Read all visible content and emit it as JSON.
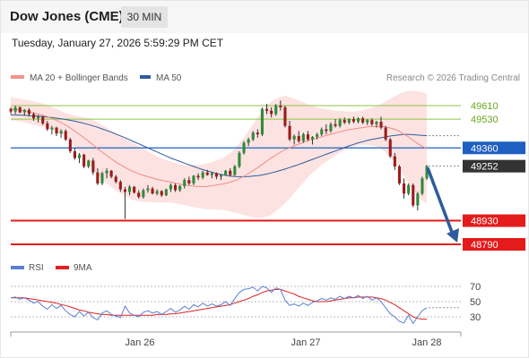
{
  "header": {
    "title": "Dow Jones (CME)",
    "timeframe": "30 MIN"
  },
  "timestamp": "Tuesday, January 27, 2026 5:59:29 PM CET",
  "legend": {
    "items": [
      {
        "label": "MA 20 + Bollinger Bands",
        "color": "#f4928c"
      },
      {
        "label": "MA 50",
        "color": "#2e5b9c"
      }
    ],
    "credit": "Research © 2026 Trading Central"
  },
  "rsi_legend": {
    "items": [
      {
        "label": "RSI",
        "color": "#5b7fd4"
      },
      {
        "label": "9MA",
        "color": "#e22020"
      }
    ]
  },
  "chart_data": [
    {
      "type": "candlestick",
      "title": "Dow Jones (CME)",
      "timeframe": "30 MIN",
      "x_tick_labels": [
        "Jan 26",
        "Jan 27",
        "Jan 28"
      ],
      "price_levels": [
        {
          "value": 49610,
          "label": "49610",
          "kind": "resistance",
          "color": "#8dc63f"
        },
        {
          "value": 49530,
          "label": "49530",
          "kind": "resistance",
          "color": "#8dc63f"
        },
        {
          "value": 49360,
          "label": "49360",
          "kind": "pivot",
          "color": "#1e5fc2"
        },
        {
          "value": 49252,
          "label": "49252",
          "kind": "last_price",
          "color": "#333333"
        },
        {
          "value": 48930,
          "label": "48930",
          "kind": "support",
          "color": "#e41b1b"
        },
        {
          "value": 48790,
          "label": "48790",
          "kind": "support",
          "color": "#e41b1b"
        }
      ],
      "arrow": {
        "from": 49252,
        "to": 48790,
        "direction": "down",
        "color": "#2e5b9c"
      },
      "ohlc": [
        [
          49590,
          49600,
          49560,
          49575
        ],
        [
          49575,
          49610,
          49560,
          49600
        ],
        [
          49600,
          49605,
          49565,
          49570
        ],
        [
          49570,
          49590,
          49550,
          49585
        ],
        [
          49585,
          49595,
          49545,
          49560
        ],
        [
          49560,
          49570,
          49520,
          49535
        ],
        [
          49535,
          49555,
          49510,
          49545
        ],
        [
          49545,
          49550,
          49495,
          49505
        ],
        [
          49505,
          49520,
          49460,
          49470
        ],
        [
          49470,
          49490,
          49440,
          49480
        ],
        [
          49480,
          49485,
          49430,
          49445
        ],
        [
          49445,
          49470,
          49420,
          49460
        ],
        [
          49460,
          49470,
          49400,
          49410
        ],
        [
          49410,
          49420,
          49330,
          49340
        ],
        [
          49340,
          49360,
          49290,
          49300
        ],
        [
          49300,
          49330,
          49270,
          49320
        ],
        [
          49320,
          49325,
          49240,
          49250
        ],
        [
          49250,
          49290,
          49240,
          49285
        ],
        [
          49285,
          49300,
          49200,
          49215
        ],
        [
          49215,
          49240,
          49140,
          49150
        ],
        [
          49150,
          49220,
          49140,
          49210
        ],
        [
          49210,
          49240,
          49180,
          49225
        ],
        [
          49225,
          49230,
          49180,
          49190
        ],
        [
          49190,
          49200,
          49150,
          49160
        ],
        [
          49160,
          49170,
          49100,
          49115
        ],
        [
          49115,
          49130,
          48940,
          49100
        ],
        [
          49100,
          49140,
          49080,
          49130
        ],
        [
          49130,
          49135,
          49090,
          49095
        ],
        [
          49095,
          49110,
          49060,
          49070
        ],
        [
          49070,
          49120,
          49060,
          49110
        ],
        [
          49110,
          49140,
          49095,
          49120
        ],
        [
          49120,
          49130,
          49085,
          49090
        ],
        [
          49090,
          49115,
          49080,
          49105
        ],
        [
          49105,
          49110,
          49070,
          49080
        ],
        [
          49080,
          49120,
          49075,
          49115
        ],
        [
          49115,
          49150,
          49100,
          49140
        ],
        [
          49140,
          49150,
          49100,
          49110
        ],
        [
          49110,
          49140,
          49100,
          49135
        ],
        [
          49135,
          49180,
          49120,
          49170
        ],
        [
          49170,
          49190,
          49140,
          49150
        ],
        [
          49150,
          49200,
          49140,
          49195
        ],
        [
          49195,
          49210,
          49170,
          49185
        ],
        [
          49185,
          49225,
          49175,
          49215
        ],
        [
          49215,
          49230,
          49195,
          49200
        ],
        [
          49200,
          49220,
          49180,
          49210
        ],
        [
          49210,
          49215,
          49175,
          49190
        ],
        [
          49190,
          49205,
          49170,
          49200
        ],
        [
          49200,
          49230,
          49195,
          49225
        ],
        [
          49225,
          49240,
          49190,
          49200
        ],
        [
          49200,
          49260,
          49195,
          49250
        ],
        [
          49250,
          49340,
          49240,
          49330
        ],
        [
          49330,
          49400,
          49320,
          49390
        ],
        [
          49390,
          49420,
          49370,
          49410
        ],
        [
          49410,
          49460,
          49400,
          49450
        ],
        [
          49450,
          49470,
          49420,
          49440
        ],
        [
          49440,
          49600,
          49430,
          49590
        ],
        [
          49590,
          49620,
          49560,
          49580
        ],
        [
          49580,
          49600,
          49540,
          49560
        ],
        [
          49560,
          49620,
          49550,
          49610
        ],
        [
          49610,
          49640,
          49580,
          49600
        ],
        [
          49600,
          49610,
          49480,
          49490
        ],
        [
          49490,
          49520,
          49400,
          49410
        ],
        [
          49410,
          49440,
          49380,
          49430
        ],
        [
          49430,
          49460,
          49390,
          49400
        ],
        [
          49400,
          49450,
          49390,
          49440
        ],
        [
          49440,
          49460,
          49400,
          49410
        ],
        [
          49410,
          49430,
          49380,
          49425
        ],
        [
          49425,
          49450,
          49410,
          49440
        ],
        [
          49440,
          49480,
          49430,
          49470
        ],
        [
          49470,
          49500,
          49440,
          49460
        ],
        [
          49460,
          49510,
          49450,
          49500
        ],
        [
          49500,
          49530,
          49480,
          49490
        ],
        [
          49490,
          49535,
          49480,
          49525
        ],
        [
          49525,
          49540,
          49500,
          49510
        ],
        [
          49510,
          49535,
          49500,
          49530
        ],
        [
          49530,
          49545,
          49505,
          49515
        ],
        [
          49515,
          49540,
          49505,
          49535
        ],
        [
          49535,
          49545,
          49500,
          49510
        ],
        [
          49510,
          49530,
          49495,
          49525
        ],
        [
          49525,
          49535,
          49490,
          49500
        ],
        [
          49500,
          49520,
          49480,
          49515
        ],
        [
          49515,
          49545,
          49470,
          49480
        ],
        [
          49480,
          49490,
          49400,
          49410
        ],
        [
          49410,
          49420,
          49300,
          49310
        ],
        [
          49310,
          49330,
          49230,
          49250
        ],
        [
          49250,
          49260,
          49140,
          49150
        ],
        [
          49150,
          49180,
          49060,
          49090
        ],
        [
          49090,
          49150,
          49080,
          49140
        ],
        [
          49140,
          49150,
          49010,
          49020
        ],
        [
          49020,
          49100,
          48990,
          49090
        ],
        [
          49090,
          49190,
          49080,
          49180
        ],
        [
          49180,
          49260,
          49170,
          49252
        ]
      ],
      "ma20": [
        49590,
        49588,
        49583,
        49578,
        49572,
        49566,
        49560,
        49553,
        49545,
        49535,
        49522,
        49510,
        49495,
        49478,
        49460,
        49440,
        49420,
        49400,
        49378,
        49355,
        49335,
        49315,
        49295,
        49277,
        49260,
        49245,
        49230,
        49218,
        49207,
        49198,
        49190,
        49182,
        49174,
        49168,
        49163,
        49158,
        49152,
        49146,
        49141,
        49137,
        49134,
        49132,
        49131,
        49133,
        49136,
        49140,
        49145,
        49150,
        49158,
        49166,
        49178,
        49192,
        49208,
        49225,
        49243,
        49262,
        49282,
        49300,
        49318,
        49335,
        49350,
        49360,
        49372,
        49382,
        49392,
        49402,
        49410,
        49418,
        49426,
        49434,
        49440,
        49448,
        49455,
        49462,
        49468,
        49472,
        49476,
        49480,
        49484,
        49486,
        49488,
        49487,
        49484,
        49478,
        49470,
        49458,
        49442,
        49425,
        49405,
        49386,
        49370,
        49355
      ],
      "bb_upper": [
        49660,
        49655,
        49650,
        49646,
        49642,
        49636,
        49630,
        49622,
        49613,
        49602,
        49590,
        49578,
        49567,
        49558,
        49550,
        49545,
        49540,
        49535,
        49525,
        49510,
        49495,
        49480,
        49462,
        49445,
        49430,
        49415,
        49400,
        49385,
        49370,
        49355,
        49340,
        49325,
        49310,
        49298,
        49288,
        49280,
        49272,
        49265,
        49260,
        49258,
        49258,
        49260,
        49262,
        49268,
        49275,
        49285,
        49296,
        49310,
        49330,
        49355,
        49385,
        49420,
        49460,
        49500,
        49540,
        49575,
        49610,
        49635,
        49650,
        49662,
        49668,
        49660,
        49650,
        49640,
        49630,
        49618,
        49608,
        49600,
        49594,
        49590,
        49585,
        49580,
        49578,
        49576,
        49575,
        49575,
        49578,
        49582,
        49590,
        49598,
        49608,
        49620,
        49635,
        49650,
        49665,
        49680,
        49690,
        49696,
        49698,
        49695,
        49690,
        49680
      ],
      "bb_lower": [
        49520,
        49522,
        49516,
        49510,
        49502,
        49496,
        49490,
        49484,
        49477,
        49468,
        49454,
        49442,
        49423,
        49398,
        49370,
        49335,
        49300,
        49265,
        49231,
        49200,
        49175,
        49150,
        49128,
        49109,
        49090,
        49075,
        49060,
        49051,
        49044,
        49041,
        49040,
        49039,
        49038,
        49038,
        49038,
        49036,
        49032,
        49027,
        49022,
        49016,
        49010,
        49004,
        49000,
        48998,
        48997,
        48995,
        48994,
        48990,
        48986,
        48977,
        48971,
        48964,
        48956,
        48950,
        48946,
        48949,
        48954,
        48965,
        48986,
        49008,
        49032,
        49060,
        49094,
        49124,
        49154,
        49186,
        49212,
        49236,
        49258,
        49278,
        49295,
        49316,
        49332,
        49348,
        49361,
        49369,
        49374,
        49378,
        49378,
        49374,
        49368,
        49354,
        49333,
        49306,
        49275,
        49236,
        49194,
        49154,
        49112,
        49077,
        49050,
        49030
      ],
      "ma50": [
        49555,
        49555,
        49554,
        49553,
        49551,
        49549,
        49547,
        49545,
        49542,
        49539,
        49536,
        49532,
        49528,
        49523,
        49518,
        49512,
        49505,
        49498,
        49490,
        49482,
        49472,
        49463,
        49453,
        49442,
        49431,
        49420,
        49408,
        49396,
        49384,
        49372,
        49360,
        49348,
        49336,
        49324,
        49312,
        49300,
        49290,
        49280,
        49270,
        49260,
        49250,
        49241,
        49232,
        49224,
        49216,
        49209,
        49203,
        49198,
        49194,
        49191,
        49190,
        49190,
        49191,
        49193,
        49196,
        49200,
        49206,
        49212,
        49219,
        49227,
        49235,
        49244,
        49253,
        49262,
        49272,
        49282,
        49292,
        49302,
        49312,
        49322,
        49332,
        49342,
        49352,
        49362,
        49372,
        49381,
        49390,
        49397,
        49404,
        49410,
        49415,
        49420,
        49425,
        49430,
        49434,
        49437,
        49440,
        49440,
        49438,
        49436,
        49434,
        49432
      ]
    },
    {
      "type": "line",
      "title": "RSI",
      "y_tick_labels": [
        "70",
        "50",
        "30"
      ],
      "series": [
        {
          "name": "RSI",
          "color": "#5b7fd4",
          "values": [
            55,
            56,
            53,
            55,
            52,
            48,
            50,
            44,
            40,
            46,
            41,
            45,
            38,
            33,
            30,
            37,
            31,
            36,
            29,
            26,
            35,
            38,
            33,
            31,
            29,
            44,
            35,
            32,
            30,
            36,
            38,
            35,
            37,
            33,
            37,
            41,
            36,
            39,
            44,
            40,
            46,
            43,
            48,
            44,
            47,
            44,
            46,
            50,
            45,
            54,
            62,
            66,
            67,
            69,
            64,
            70,
            68,
            62,
            68,
            66,
            52,
            45,
            47,
            44,
            48,
            45,
            49,
            51,
            54,
            52,
            55,
            53,
            57,
            54,
            57,
            55,
            58,
            54,
            57,
            52,
            55,
            50,
            42,
            34,
            30,
            24,
            22,
            32,
            21,
            30,
            38,
            42
          ]
        },
        {
          "name": "9MA",
          "color": "#e22020",
          "values": [
            55,
            55,
            55,
            55,
            54,
            53,
            52,
            51,
            50,
            49,
            48,
            46,
            45,
            43,
            41,
            39,
            38,
            36,
            35,
            34,
            33,
            33,
            32,
            32,
            32,
            32,
            32,
            32,
            32,
            32,
            32,
            32,
            33,
            33,
            33,
            34,
            34,
            35,
            36,
            37,
            38,
            39,
            40,
            41,
            42,
            43,
            44,
            45,
            46,
            48,
            50,
            52,
            54,
            57,
            59,
            62,
            64,
            65,
            66,
            66,
            64,
            62,
            60,
            57,
            55,
            53,
            51,
            50,
            50,
            50,
            51,
            52,
            53,
            54,
            55,
            55,
            56,
            56,
            56,
            56,
            55,
            54,
            52,
            49,
            46,
            42,
            38,
            34,
            30,
            28,
            27,
            27
          ]
        }
      ]
    }
  ]
}
